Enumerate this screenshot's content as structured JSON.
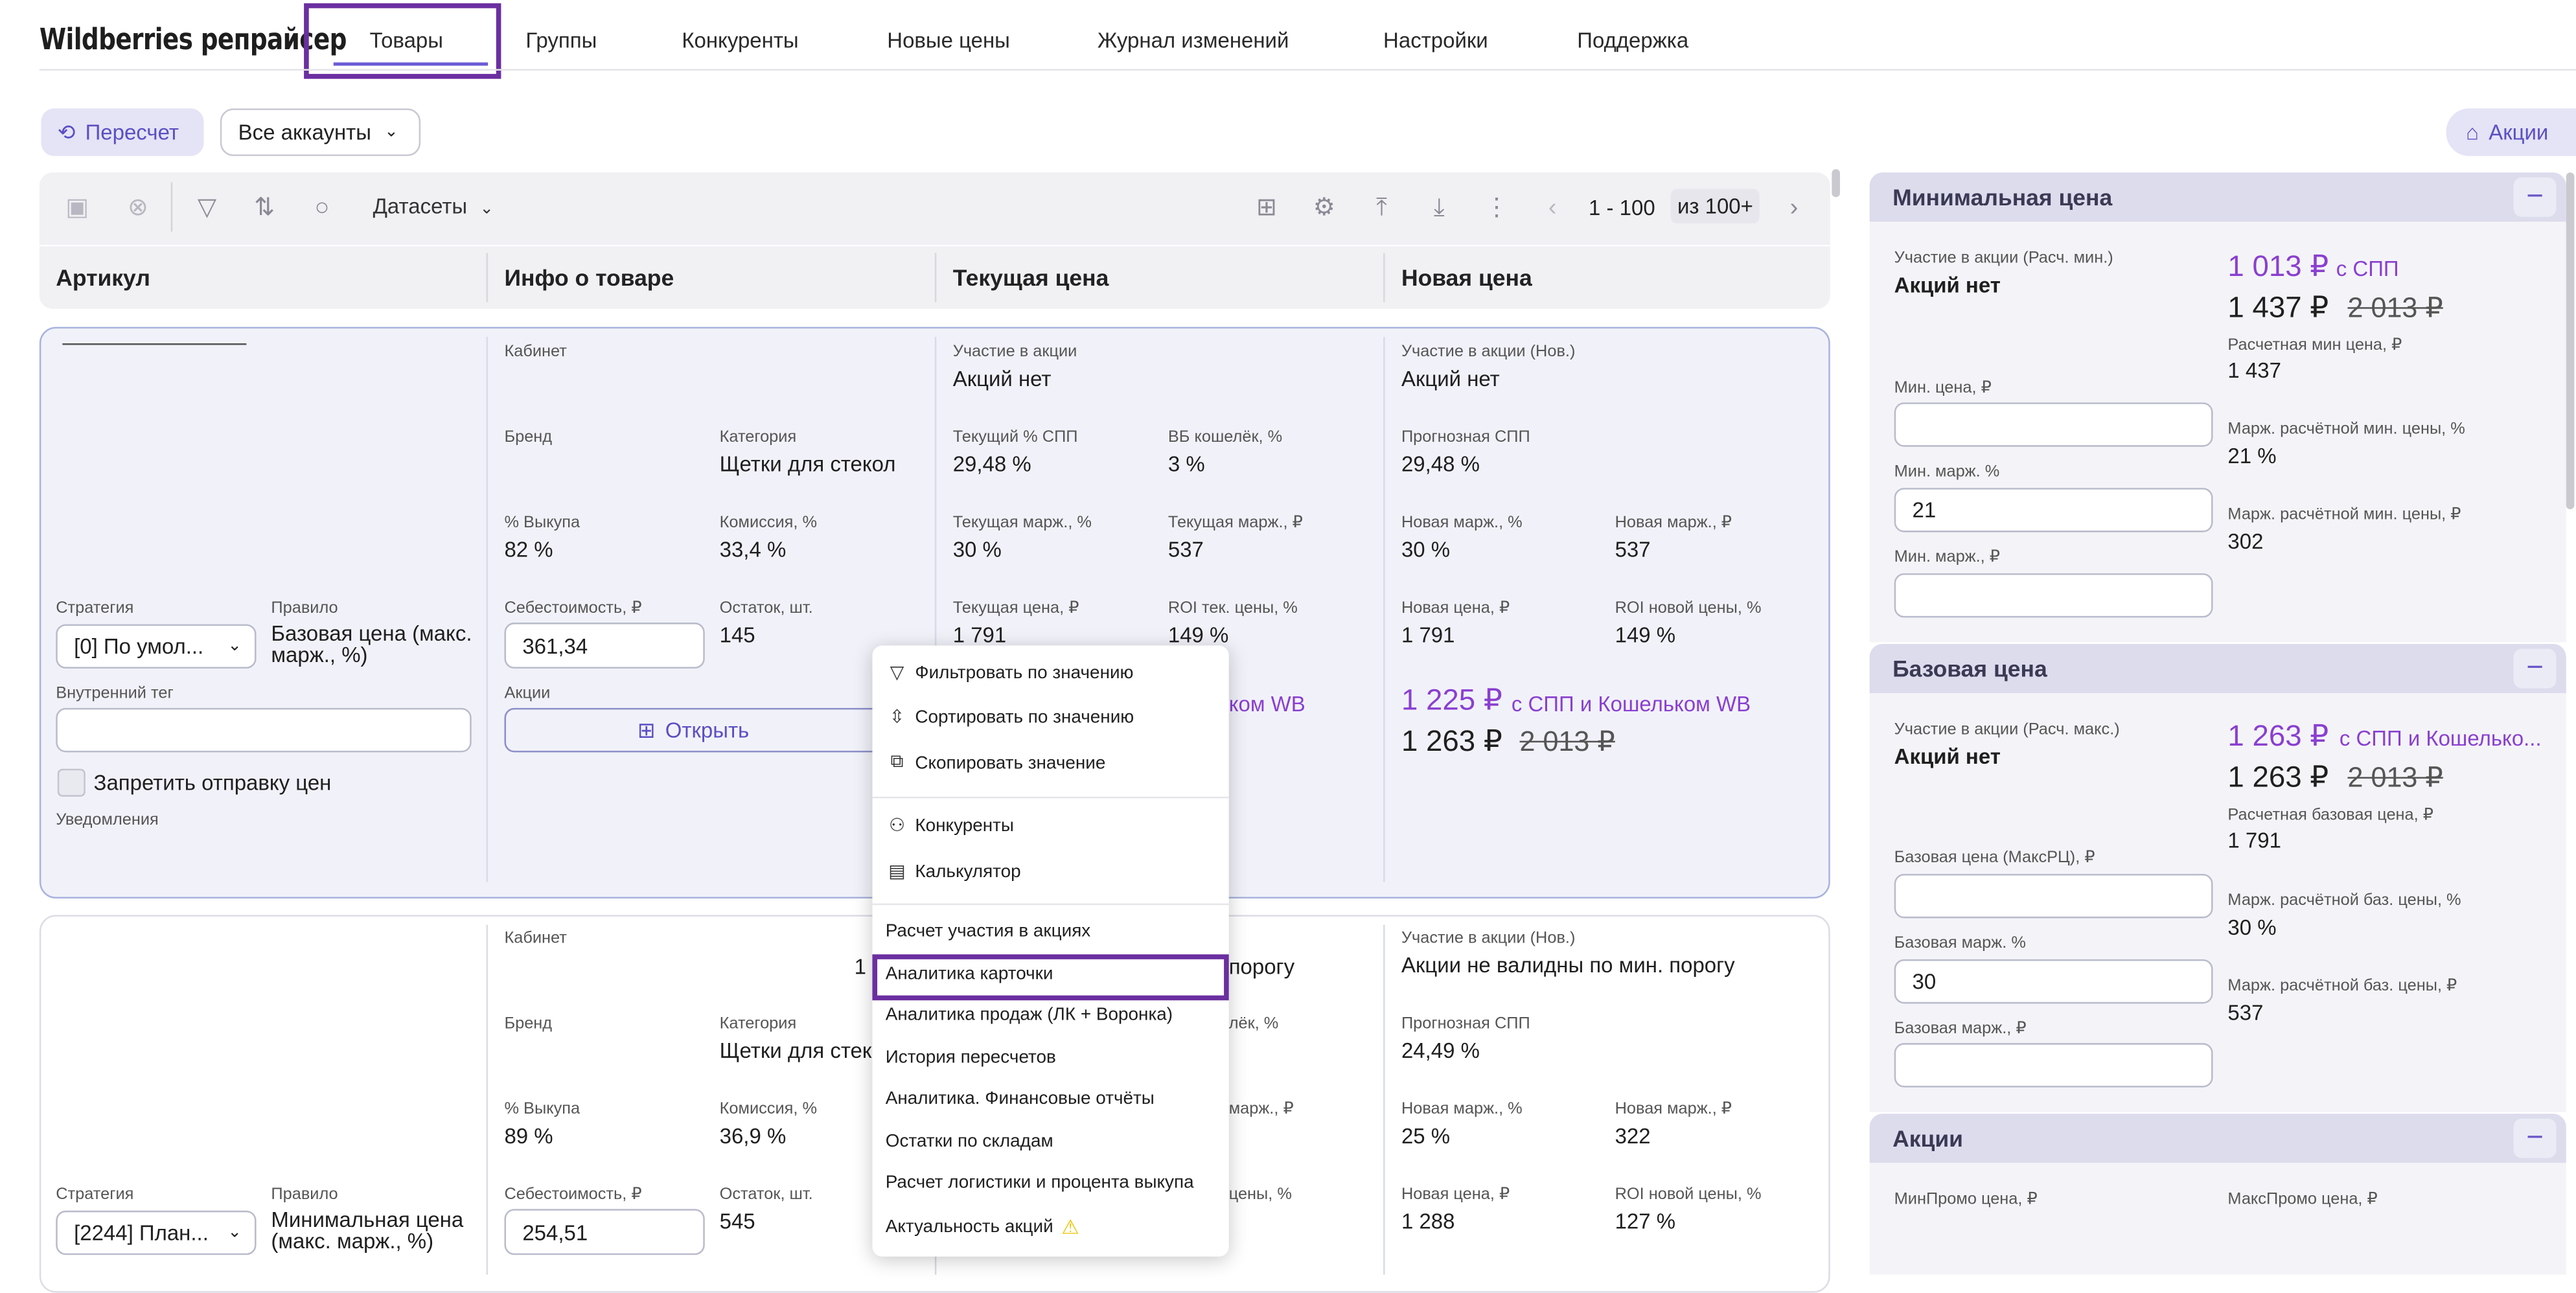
{
  "app": {
    "title": "Wildberries репрайсер"
  },
  "nav": {
    "tabs": [
      {
        "label": "Товары"
      },
      {
        "label": "Группы"
      },
      {
        "label": "Конкуренты"
      },
      {
        "label": "Новые цены"
      },
      {
        "label": "Журнал изменений"
      },
      {
        "label": "Настройки"
      },
      {
        "label": "Поддержка"
      }
    ]
  },
  "controls": {
    "recalc_label": "Пересчет",
    "accounts_value": "Все аккаунты",
    "promos_label": "Акции"
  },
  "toolbar": {
    "datasets_label": "Датасеты",
    "pagination_range": "1 - 100",
    "pagination_total": "из 100+"
  },
  "table": {
    "columns": [
      "Артикул",
      "Инфо о товаре",
      "Текущая цена",
      "Новая цена"
    ]
  },
  "row1": {
    "strategy_label": "Стратегия",
    "strategy_value": "[0] По умол...",
    "rule_label": "Правило",
    "rule_value": "Базовая цена (макс. марж., %)",
    "tag_label": "Внутренний тег",
    "block_label": "Запретить отправку цен",
    "notifications_label": "Уведомления",
    "cabinet_label": "Кабинет",
    "brand_label": "Бренд",
    "category_label": "Категория",
    "category_value": "Щетки для стекол",
    "buyout_label": "% Выкупа",
    "buyout_value": "82 %",
    "commission_label": "Комиссия, %",
    "commission_value": "33,4 %",
    "cost_label": "Себестоимость, ₽",
    "cost_value": "361,34",
    "stock_label": "Остаток, шт.",
    "stock_value": "145",
    "promos_label": "Акции",
    "open_label": "Открыть",
    "cur_promo_label": "Участие в акции",
    "cur_promo_value": "Акций нет",
    "cur_spp_label": "Текущий % СПП",
    "cur_spp_value": "29,48 %",
    "wallet_label": "ВБ кошелёк, %",
    "wallet_value": "3 %",
    "cur_margin_pct_label": "Текущая марж., %",
    "cur_margin_pct_value": "30 %",
    "cur_margin_rub_label": "Текущая марж., ₽",
    "cur_margin_rub_value": "537",
    "cur_price_label": "Текущая цена, ₽",
    "cur_price_value": "1 791",
    "roi_cur_label": "ROI тек. цены, %",
    "roi_cur_value": "149 %",
    "cur_wb_text": "ком WB",
    "new_promo_label": "Участие в акции (Нов.)",
    "new_promo_value": "Акций нет",
    "forecast_spp_label": "Прогнозная СПП",
    "forecast_spp_value": "29,48 %",
    "new_margin_pct_label": "Новая марж., %",
    "new_margin_pct_value": "30 %",
    "new_margin_rub_label": "Новая марж., ₽",
    "new_margin_rub_value": "537",
    "new_price_label": "Новая цена, ₽",
    "new_price_value": "1 791",
    "roi_new_label": "ROI новой цены, %",
    "roi_new_value": "149 %",
    "big_price_purple": "1 225 ₽",
    "big_price_purple_suffix": "с СПП и Кошельком WB",
    "big_price": "1 263 ₽",
    "big_price_old": "2 013 ₽"
  },
  "row2": {
    "strategy_label": "Стратегия",
    "strategy_value": "[2244] План...",
    "rule_label": "Правило",
    "rule_value": "Минимальная цена (макс. марж., %)",
    "cabinet_label": "Кабинет",
    "brand_label": "Бренд",
    "category_label": "Категория",
    "category_value": "Щетки для стекол",
    "buyout_label": "% Выкупа",
    "buyout_value": "89 %",
    "commission_label": "Комиссия, %",
    "commission_value": "36,9 %",
    "cost_label": "Себестоимость, ₽",
    "cost_value": "254,51",
    "stock_label": "Остаток, шт.",
    "stock_value": "545",
    "partial_1": "1",
    "partial_porog": "порогу",
    "partial_wallet": "лёк, %",
    "partial_margin": "марж., ₽",
    "partial_roi": "цены, %",
    "new_promo_label": "Участие в акции (Нов.)",
    "new_promo_value": "Акции не валидны по мин. порогу",
    "forecast_spp_label": "Прогнозная СПП",
    "forecast_spp_value": "24,49 %",
    "new_margin_pct_label": "Новая марж., %",
    "new_margin_pct_value": "25 %",
    "new_margin_rub_label": "Новая марж., ₽",
    "new_margin_rub_value": "322",
    "new_price_label": "Новая цена, ₽",
    "new_price_value": "1 288",
    "roi_new_label": "ROI новой цены, %",
    "roi_new_value": "127 %"
  },
  "context_menu": {
    "items": [
      "Фильтровать по значению",
      "Сортировать по значению",
      "Скопировать значение",
      "Конкуренты",
      "Калькулятор",
      "Расчет участия в акциях",
      "Аналитика карточки",
      "Аналитика продаж (ЛК + Воронка)",
      "История пересчетов",
      "Аналитика. Финансовые отчёты",
      "Остатки по складам",
      "Расчет логистики и процента выкупа",
      "Актуальность акций"
    ]
  },
  "panel_min": {
    "title": "Минимальная цена",
    "promo_label": "Участие в акции (Расч. мин.)",
    "promo_value": "Акций нет",
    "price_purple": "1 013 ₽",
    "price_purple_suffix": "с СПП",
    "price": "1 437 ₽",
    "price_old": "2 013 ₽",
    "calc_label": "Расчетная мин цена, ₽",
    "calc_value": "1 437",
    "min_price_label": "Мин. цена, ₽",
    "min_price_value": "",
    "min_margin_pct_label": "Мин. марж. %",
    "min_margin_pct_value": "21",
    "min_margin_rub_label": "Мин. марж., ₽",
    "min_margin_rub_value": "",
    "margin_pct_label": "Марж. расчётной мин. цены, %",
    "margin_pct_value": "21 %",
    "margin_rub_label": "Марж. расчётной мин. цены, ₽",
    "margin_rub_value": "302"
  },
  "panel_base": {
    "title": "Базовая цена",
    "promo_label": "Участие в акции (Расч. макс.)",
    "promo_value": "Акций нет",
    "price_purple": "1 263 ₽",
    "price_purple_suffix": "с СПП и Кошелько...",
    "price": "1 263 ₽",
    "price_old": "2 013 ₽",
    "calc_label": "Расчетная базовая цена, ₽",
    "calc_value": "1 791",
    "base_price_label": "Базовая цена (МаксРЦ), ₽",
    "base_price_value": "",
    "base_margin_pct_label": "Базовая марж. %",
    "base_margin_pct_value": "30",
    "base_margin_rub_label": "Базовая марж., ₽",
    "base_margin_rub_value": "",
    "margin_pct_label": "Марж. расчётной баз. цены, %",
    "margin_pct_value": "30 %",
    "margin_rub_label": "Марж. расчётной баз. цены, ₽",
    "margin_rub_value": "537"
  },
  "panel_promos": {
    "title": "Акции",
    "min_promo_label": "МинПромо цена, ₽",
    "max_promo_label": "МаксПромо цена, ₽"
  },
  "colors": {
    "accent": "#6b5bd6",
    "purple_price": "#8a3fd0",
    "highlight_box": "#6b2fa0",
    "warning": "#f2c200"
  }
}
